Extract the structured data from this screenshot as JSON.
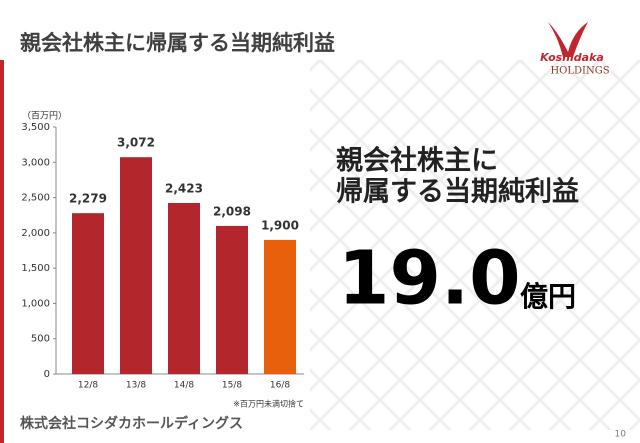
{
  "slide_title": "親会社株主に帰属する当期純利益",
  "logo": {
    "name": "Koshidaka",
    "sub": "HOLDINGS"
  },
  "chart_data": {
    "type": "bar",
    "unit_label": "（百万円）",
    "categories": [
      "12/8",
      "13/8",
      "14/8",
      "15/8",
      "16/8"
    ],
    "values": [
      2279,
      3072,
      2423,
      2098,
      1900
    ],
    "value_labels": [
      "2,279",
      "3,072",
      "2,423",
      "2,098",
      "1,900"
    ],
    "colors": [
      "#b3262b",
      "#b3262b",
      "#b3262b",
      "#b3262b",
      "#e85f0c"
    ],
    "ylim": [
      0,
      3500
    ],
    "yticks": [
      0,
      500,
      {
        "value": 1000,
        "label": "1,000"
      },
      {
        "value": 1500,
        "label": "1,500"
      },
      {
        "value": 2000,
        "label": "2,000"
      },
      {
        "value": 2500,
        "label": "2,500"
      },
      {
        "value": 3000,
        "label": "3,000"
      },
      {
        "value": 3500,
        "label": "3,500"
      }
    ],
    "grid": false,
    "note": "※百万円未満切捨て"
  },
  "headline": {
    "lines": [
      "親会社株主に",
      "帰属する当期純利益"
    ],
    "value": "19.0",
    "unit": "億円"
  },
  "footer": {
    "company": "株式会社コシダカホールディングス",
    "page": "10"
  }
}
